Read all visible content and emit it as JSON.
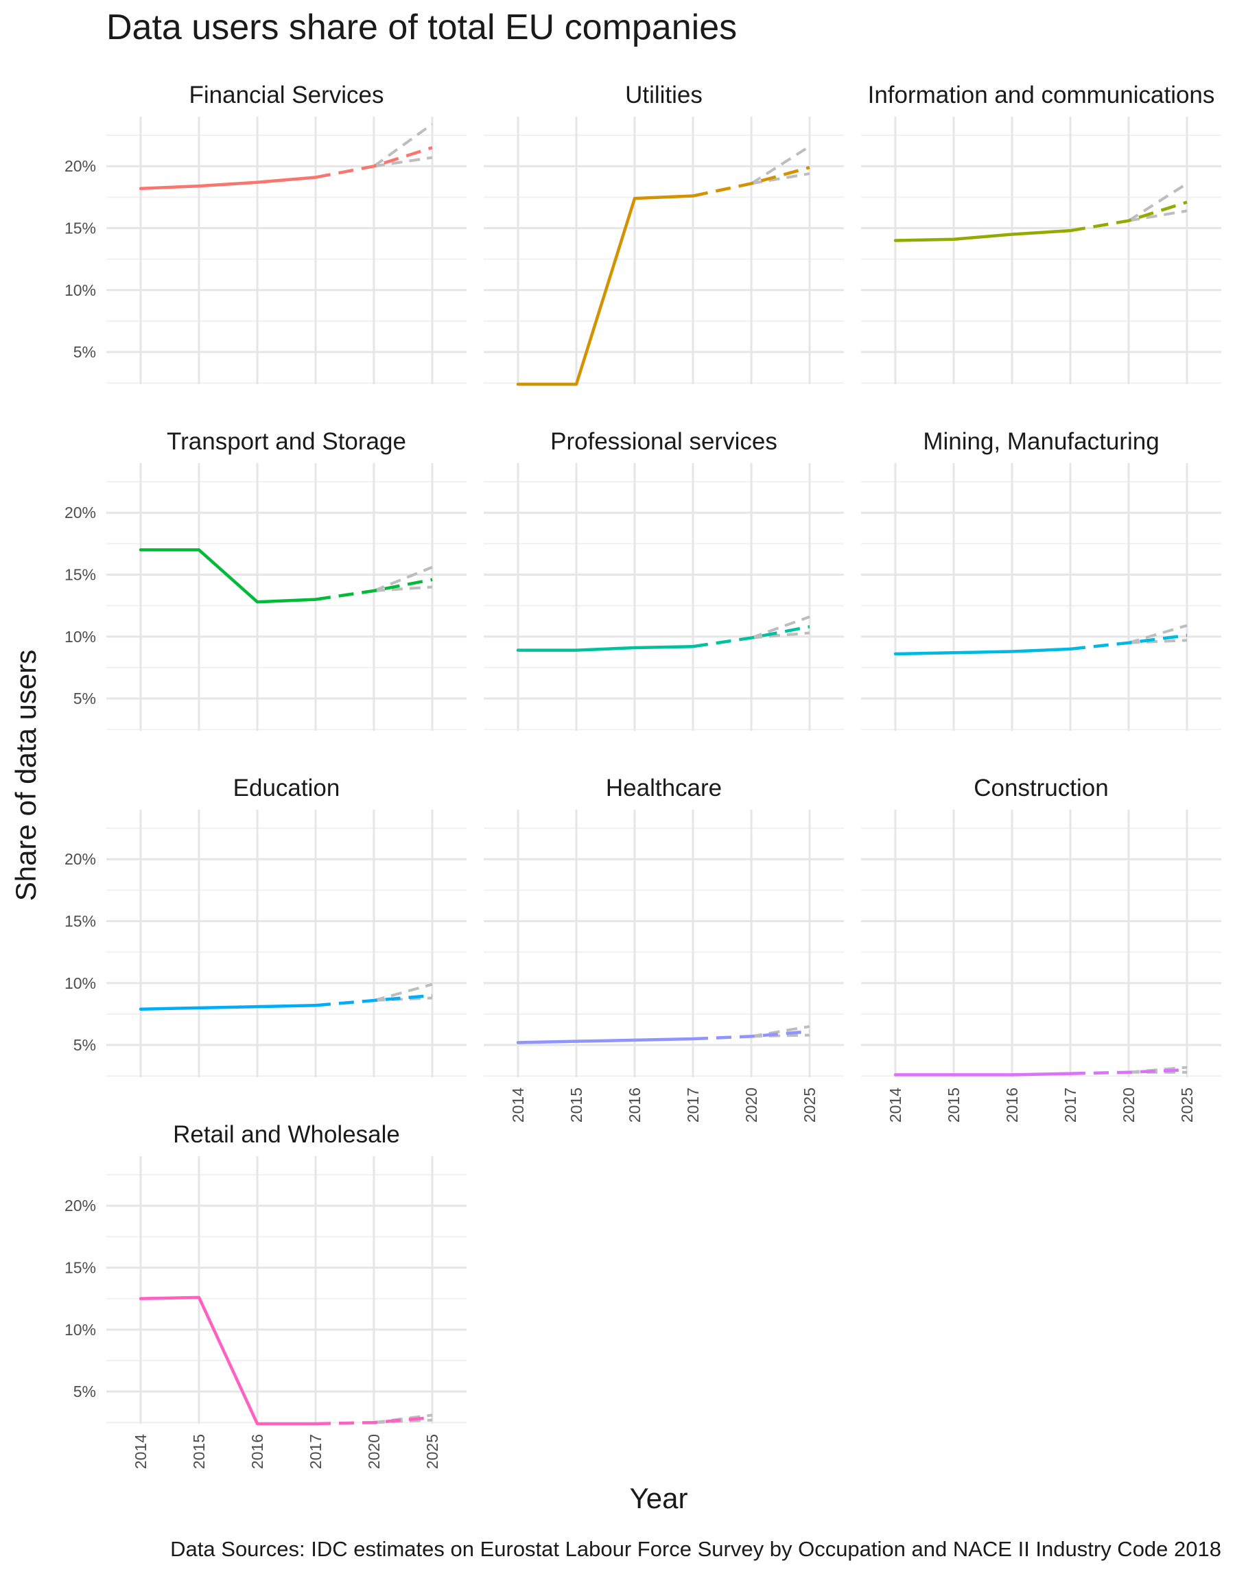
{
  "chart_data": {
    "type": "line",
    "title": "Data users share of total EU companies",
    "xlabel": "Year",
    "ylabel": "Share of data users",
    "caption": "Data Sources: IDC estimates on Eurostat Labour Force Survey by Occupation and NACE II Industry Code 2018",
    "x_categories": [
      "2014",
      "2015",
      "2016",
      "2017",
      "2020",
      "2025"
    ],
    "y_ticks": [
      "5%",
      "10%",
      "15%",
      "20%"
    ],
    "y_tick_values": [
      5,
      10,
      15,
      20
    ],
    "ylim": [
      2.4,
      24
    ],
    "grid": true,
    "legend": "none",
    "projection_style": "dashed from 2017 onward; grey dashed scenario band from 2020",
    "panels": [
      {
        "name": "Financial Services",
        "color": "#F8766D",
        "values": [
          18.2,
          18.4,
          18.7,
          19.1,
          20.0,
          21.5
        ],
        "band_2025": [
          23.4,
          20.7
        ]
      },
      {
        "name": "Utilities",
        "color": "#D39200",
        "values": [
          2.4,
          2.4,
          17.4,
          17.6,
          18.6,
          19.9
        ],
        "band_2025": [
          21.6,
          19.4
        ]
      },
      {
        "name": "Information and communications",
        "color": "#93AA00",
        "values": [
          14.0,
          14.1,
          14.5,
          14.8,
          15.6,
          17.1
        ],
        "band_2025": [
          18.6,
          16.4
        ]
      },
      {
        "name": "Transport and Storage",
        "color": "#00BA38",
        "values": [
          17.0,
          17.0,
          12.8,
          13.0,
          13.7,
          14.6
        ],
        "band_2025": [
          15.6,
          14.0
        ]
      },
      {
        "name": "Professional services",
        "color": "#00C19F",
        "values": [
          8.9,
          8.9,
          9.1,
          9.2,
          9.9,
          10.8
        ],
        "band_2025": [
          11.6,
          10.3
        ]
      },
      {
        "name": "Mining, Manufacturing",
        "color": "#00B9E3",
        "values": [
          8.6,
          8.7,
          8.8,
          9.0,
          9.5,
          10.1
        ],
        "band_2025": [
          10.9,
          9.7
        ]
      },
      {
        "name": "Education",
        "color": "#00ADFA",
        "values": [
          7.9,
          8.0,
          8.1,
          8.2,
          8.6,
          9.0
        ],
        "band_2025": [
          9.9,
          8.8
        ]
      },
      {
        "name": "Healthcare",
        "color": "#8F94FF",
        "values": [
          5.2,
          5.3,
          5.4,
          5.5,
          5.7,
          6.1
        ],
        "band_2025": [
          6.5,
          5.8
        ]
      },
      {
        "name": "Construction",
        "color": "#DB72FB",
        "values": [
          2.6,
          2.6,
          2.6,
          2.7,
          2.8,
          3.0
        ],
        "band_2025": [
          3.2,
          2.8
        ]
      },
      {
        "name": "Retail and Wholesale",
        "color": "#FF61C3",
        "values": [
          12.5,
          12.6,
          2.4,
          2.4,
          2.5,
          2.9
        ],
        "band_2025": [
          3.1,
          2.7
        ]
      }
    ]
  }
}
